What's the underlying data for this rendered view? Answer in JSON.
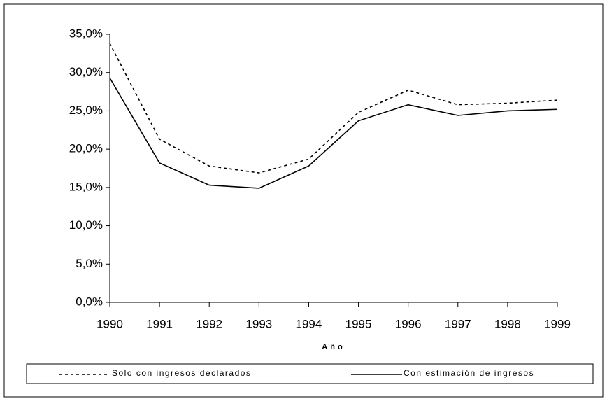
{
  "chart_data": {
    "type": "line",
    "x": [
      1990,
      1991,
      1992,
      1993,
      1994,
      1995,
      1996,
      1997,
      1998,
      1999
    ],
    "xlabel": "Año",
    "xlim": [
      1990,
      1999
    ],
    "series": [
      {
        "name": "Solo con ingresos declarados",
        "color": "#000000",
        "dash": "dotted",
        "values": [
          33.8,
          21.3,
          17.8,
          16.9,
          18.7,
          24.8,
          27.7,
          25.8,
          26.0,
          26.4
        ]
      },
      {
        "name": "Con estimación de ingresos",
        "color": "#000000",
        "dash": "solid",
        "values": [
          29.3,
          18.2,
          15.3,
          14.9,
          17.8,
          23.7,
          25.8,
          24.4,
          25.0,
          25.2
        ]
      }
    ],
    "ylim": [
      0,
      35
    ],
    "yticks": [
      {
        "value": 0,
        "label": "0,0%"
      },
      {
        "value": 5,
        "label": "5,0%"
      },
      {
        "value": 10,
        "label": "10,0%"
      },
      {
        "value": 15,
        "label": "15,0%"
      },
      {
        "value": 20,
        "label": "20,0%"
      },
      {
        "value": 25,
        "label": "25,0%"
      },
      {
        "value": 30,
        "label": "30,0%"
      },
      {
        "value": 35,
        "label": "35,0%"
      }
    ],
    "legend": "bottom"
  }
}
